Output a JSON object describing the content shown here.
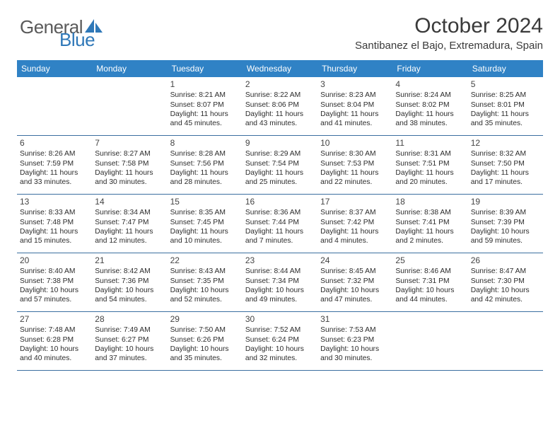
{
  "brand": {
    "word1": "General",
    "word2": "Blue"
  },
  "header": {
    "title": "October 2024",
    "subtitle": "Santibanez el Bajo, Extremadura, Spain"
  },
  "colors": {
    "header_bg": "#3082c5",
    "header_text": "#ffffff",
    "rule": "#3b6fa0",
    "brand_gray": "#5a5a5a",
    "brand_blue": "#2f78b8",
    "text": "#2c2c2c",
    "background": "#ffffff"
  },
  "daysOfWeek": [
    "Sunday",
    "Monday",
    "Tuesday",
    "Wednesday",
    "Thursday",
    "Friday",
    "Saturday"
  ],
  "weeks": [
    [
      null,
      null,
      {
        "n": "1",
        "sr": "8:21 AM",
        "ss": "8:07 PM",
        "dl": "11 hours and 45 minutes."
      },
      {
        "n": "2",
        "sr": "8:22 AM",
        "ss": "8:06 PM",
        "dl": "11 hours and 43 minutes."
      },
      {
        "n": "3",
        "sr": "8:23 AM",
        "ss": "8:04 PM",
        "dl": "11 hours and 41 minutes."
      },
      {
        "n": "4",
        "sr": "8:24 AM",
        "ss": "8:02 PM",
        "dl": "11 hours and 38 minutes."
      },
      {
        "n": "5",
        "sr": "8:25 AM",
        "ss": "8:01 PM",
        "dl": "11 hours and 35 minutes."
      }
    ],
    [
      {
        "n": "6",
        "sr": "8:26 AM",
        "ss": "7:59 PM",
        "dl": "11 hours and 33 minutes."
      },
      {
        "n": "7",
        "sr": "8:27 AM",
        "ss": "7:58 PM",
        "dl": "11 hours and 30 minutes."
      },
      {
        "n": "8",
        "sr": "8:28 AM",
        "ss": "7:56 PM",
        "dl": "11 hours and 28 minutes."
      },
      {
        "n": "9",
        "sr": "8:29 AM",
        "ss": "7:54 PM",
        "dl": "11 hours and 25 minutes."
      },
      {
        "n": "10",
        "sr": "8:30 AM",
        "ss": "7:53 PM",
        "dl": "11 hours and 22 minutes."
      },
      {
        "n": "11",
        "sr": "8:31 AM",
        "ss": "7:51 PM",
        "dl": "11 hours and 20 minutes."
      },
      {
        "n": "12",
        "sr": "8:32 AM",
        "ss": "7:50 PM",
        "dl": "11 hours and 17 minutes."
      }
    ],
    [
      {
        "n": "13",
        "sr": "8:33 AM",
        "ss": "7:48 PM",
        "dl": "11 hours and 15 minutes."
      },
      {
        "n": "14",
        "sr": "8:34 AM",
        "ss": "7:47 PM",
        "dl": "11 hours and 12 minutes."
      },
      {
        "n": "15",
        "sr": "8:35 AM",
        "ss": "7:45 PM",
        "dl": "11 hours and 10 minutes."
      },
      {
        "n": "16",
        "sr": "8:36 AM",
        "ss": "7:44 PM",
        "dl": "11 hours and 7 minutes."
      },
      {
        "n": "17",
        "sr": "8:37 AM",
        "ss": "7:42 PM",
        "dl": "11 hours and 4 minutes."
      },
      {
        "n": "18",
        "sr": "8:38 AM",
        "ss": "7:41 PM",
        "dl": "11 hours and 2 minutes."
      },
      {
        "n": "19",
        "sr": "8:39 AM",
        "ss": "7:39 PM",
        "dl": "10 hours and 59 minutes."
      }
    ],
    [
      {
        "n": "20",
        "sr": "8:40 AM",
        "ss": "7:38 PM",
        "dl": "10 hours and 57 minutes."
      },
      {
        "n": "21",
        "sr": "8:42 AM",
        "ss": "7:36 PM",
        "dl": "10 hours and 54 minutes."
      },
      {
        "n": "22",
        "sr": "8:43 AM",
        "ss": "7:35 PM",
        "dl": "10 hours and 52 minutes."
      },
      {
        "n": "23",
        "sr": "8:44 AM",
        "ss": "7:34 PM",
        "dl": "10 hours and 49 minutes."
      },
      {
        "n": "24",
        "sr": "8:45 AM",
        "ss": "7:32 PM",
        "dl": "10 hours and 47 minutes."
      },
      {
        "n": "25",
        "sr": "8:46 AM",
        "ss": "7:31 PM",
        "dl": "10 hours and 44 minutes."
      },
      {
        "n": "26",
        "sr": "8:47 AM",
        "ss": "7:30 PM",
        "dl": "10 hours and 42 minutes."
      }
    ],
    [
      {
        "n": "27",
        "sr": "7:48 AM",
        "ss": "6:28 PM",
        "dl": "10 hours and 40 minutes."
      },
      {
        "n": "28",
        "sr": "7:49 AM",
        "ss": "6:27 PM",
        "dl": "10 hours and 37 minutes."
      },
      {
        "n": "29",
        "sr": "7:50 AM",
        "ss": "6:26 PM",
        "dl": "10 hours and 35 minutes."
      },
      {
        "n": "30",
        "sr": "7:52 AM",
        "ss": "6:24 PM",
        "dl": "10 hours and 32 minutes."
      },
      {
        "n": "31",
        "sr": "7:53 AM",
        "ss": "6:23 PM",
        "dl": "10 hours and 30 minutes."
      },
      null,
      null
    ]
  ],
  "labels": {
    "sunrise": "Sunrise:",
    "sunset": "Sunset:",
    "daylight": "Daylight:"
  }
}
